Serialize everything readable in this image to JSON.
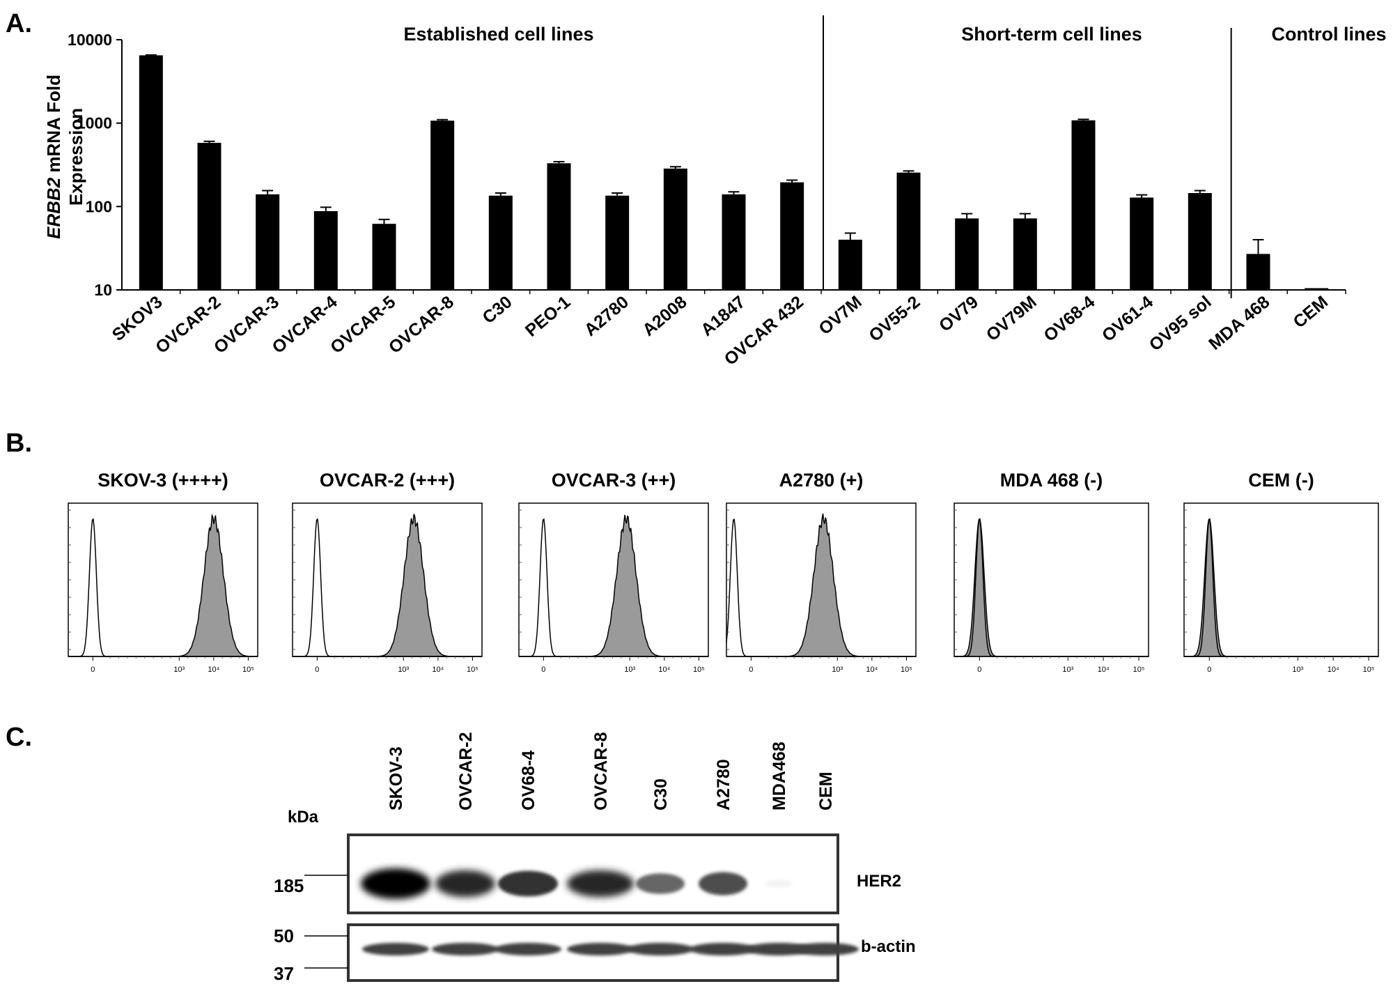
{
  "panel_letters": {
    "a": "A.",
    "b": "B.",
    "c": "C."
  },
  "chart_data": [
    {
      "type": "bar",
      "panel": "A",
      "title": "",
      "ylabel_italic": "ERBB2",
      "ylabel_rest": " mRNA Fold",
      "ylabel_line2": "Expression",
      "xlabel": "",
      "yscale": "log",
      "ylim": [
        10,
        10000
      ],
      "yticks": [
        "10",
        "100",
        "1000",
        "10000"
      ],
      "grid": false,
      "bar_color": "#000000",
      "groups": [
        {
          "label": "Established cell lines",
          "start": 0,
          "end": 11
        },
        {
          "label": "Short-term cell lines",
          "start": 12,
          "end": 18
        },
        {
          "label": "Control  lines",
          "start": 19,
          "end": 20
        }
      ],
      "categories": [
        "SKOV3",
        "OVCAR-2",
        "OVCAR-3",
        "OVCAR-4",
        "OVCAR-5",
        "OVCAR-8",
        "C30",
        "PEO-1",
        "A2780",
        "A2008",
        "A1847",
        "OVCAR 432",
        "OV7M",
        "OV55-2",
        "OV79",
        "OV79M",
        "OV68-4",
        "OV61-4",
        "OV95 sol",
        "MDA 468",
        "CEM"
      ],
      "values": [
        6500,
        580,
        140,
        88,
        62,
        1070,
        135,
        330,
        135,
        285,
        140,
        195,
        40,
        255,
        72,
        72,
        1080,
        128,
        145,
        27,
        10
      ],
      "errors": [
        60,
        25,
        15,
        10,
        8,
        30,
        10,
        15,
        10,
        15,
        10,
        12,
        8,
        12,
        10,
        10,
        30,
        10,
        10,
        13,
        0
      ]
    },
    {
      "type": "histogram",
      "panel": "B",
      "x_tick_labels": [
        "0",
        "10³",
        "10⁴",
        "10⁵"
      ],
      "fill_color": "#9a9a9a",
      "histograms": [
        {
          "title": "SKOV-3 (++++)",
          "control_peak": 0.5,
          "sample_peak": 4.0
        },
        {
          "title": "OVCAR-2 (+++)",
          "control_peak": 0.5,
          "sample_peak": 3.3
        },
        {
          "title": "OVCAR-3 (++)",
          "control_peak": 0.5,
          "sample_peak": 2.9
        },
        {
          "title": "A2780 (+)",
          "control_peak": 0.0,
          "sample_peak": 2.6
        },
        {
          "title": "MDA 468 (-)",
          "control_peak": 0.5,
          "sample_peak": 0.5
        },
        {
          "title": "CEM (-)",
          "control_peak": 0.5,
          "sample_peak": 0.5
        }
      ]
    },
    {
      "type": "blot",
      "panel": "C",
      "unit_label": "kDa",
      "lanes": [
        "SKOV-3",
        "OVCAR-2",
        "OV68-4",
        "OVCAR-8",
        "C30",
        "A2780",
        "MDA468",
        "CEM"
      ],
      "blots": [
        {
          "label": "HER2",
          "markers": [
            "185"
          ],
          "intensity": [
            1.0,
            0.85,
            0.8,
            0.85,
            0.6,
            0.7,
            0.05,
            0.0
          ]
        },
        {
          "label": "b-actin",
          "markers": [
            "50",
            "37"
          ],
          "intensity": [
            0.75,
            0.75,
            0.75,
            0.75,
            0.75,
            0.75,
            0.75,
            0.75
          ]
        }
      ]
    }
  ]
}
